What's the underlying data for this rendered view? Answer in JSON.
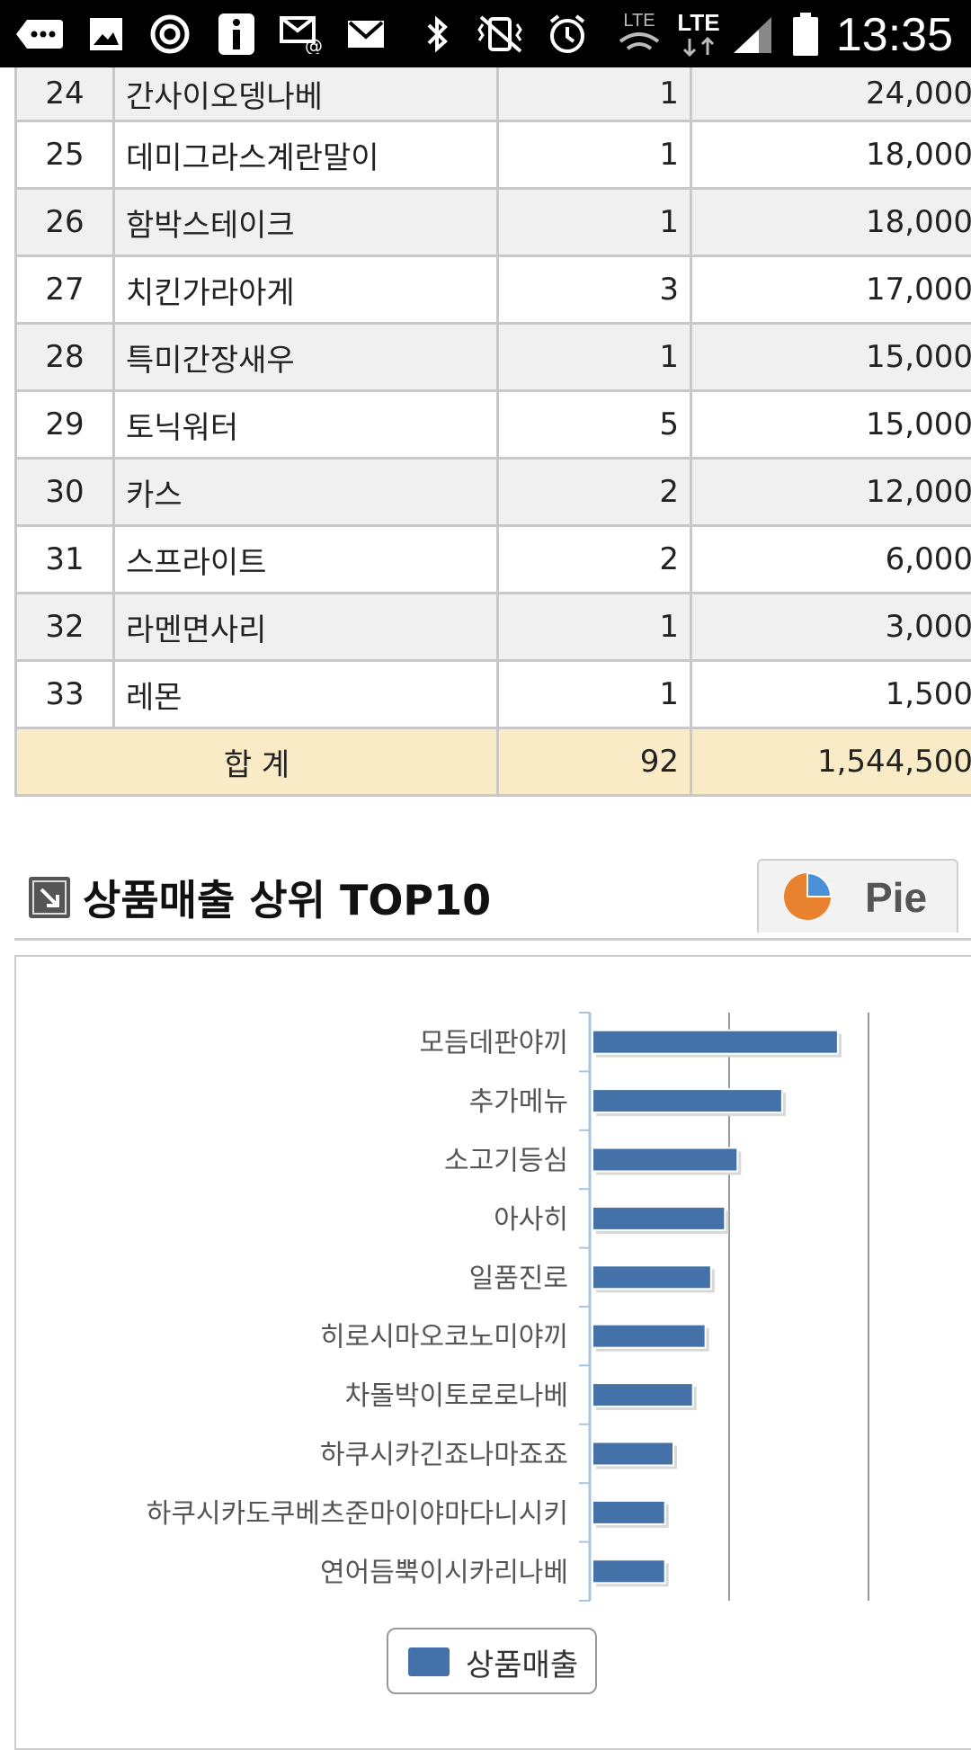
{
  "status_bar": {
    "time": "13:35",
    "lte_label_1": "LTE",
    "lte_label_2": "LTE"
  },
  "table": {
    "rows": [
      {
        "no": "24",
        "name": "간사이오뎅나베",
        "qty": "1",
        "amount": "24,000"
      },
      {
        "no": "25",
        "name": "데미그라스계란말이",
        "qty": "1",
        "amount": "18,000"
      },
      {
        "no": "26",
        "name": "함박스테이크",
        "qty": "1",
        "amount": "18,000"
      },
      {
        "no": "27",
        "name": "치킨가라아게",
        "qty": "3",
        "amount": "17,000"
      },
      {
        "no": "28",
        "name": "특미간장새우",
        "qty": "1",
        "amount": "15,000"
      },
      {
        "no": "29",
        "name": "토닉워터",
        "qty": "5",
        "amount": "15,000"
      },
      {
        "no": "30",
        "name": "카스",
        "qty": "2",
        "amount": "12,000"
      },
      {
        "no": "31",
        "name": "스프라이트",
        "qty": "2",
        "amount": "6,000"
      },
      {
        "no": "32",
        "name": "라멘면사리",
        "qty": "1",
        "amount": "3,000"
      },
      {
        "no": "33",
        "name": "레몬",
        "qty": "1",
        "amount": "1,500"
      }
    ],
    "total": {
      "label": "합 계",
      "qty": "92",
      "amount": "1,544,500"
    }
  },
  "section": {
    "title": "상품매출 상위 TOP10",
    "pie_button_label": "Pie"
  },
  "chart_data": {
    "type": "bar",
    "orientation": "horizontal",
    "categories": [
      "모듬데판야끼",
      "추가메뉴",
      "소고기등심",
      "아사히",
      "일품진로",
      "히로시마오코노미야끼",
      "차돌박이토로로나베",
      "하쿠시카긴죠나마죠죠",
      "하쿠시카도쿠베츠준마이야마다니시키",
      "연어듬뿍이시카리나베"
    ],
    "series": [
      {
        "name": "상품매출",
        "values": [
          178,
          138,
          106,
          97,
          87,
          83,
          74,
          60,
          54,
          54
        ]
      }
    ],
    "xlim": [
      0,
      200
    ],
    "grid": true,
    "legend": "bottom-center",
    "colors": {
      "bar": "#4472a8",
      "axis": "#a9c4de",
      "grid": "#999999"
    }
  },
  "legend": {
    "label": "상품매출"
  }
}
